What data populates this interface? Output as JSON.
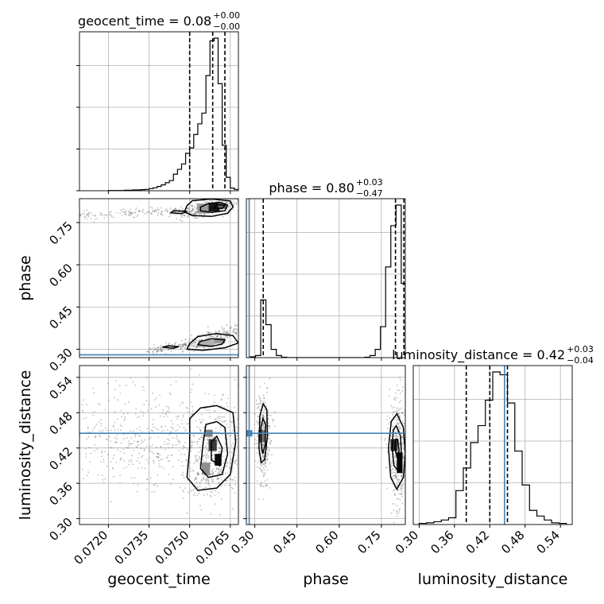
{
  "chart_data": {
    "type": "corner",
    "parameters": [
      "geocent_time",
      "phase",
      "luminosity_distance"
    ],
    "truth_color": "#4682b4",
    "truths": {
      "phase": 0.28,
      "luminosity_distance": 0.445
    },
    "titles": [
      {
        "param": "geocent_time",
        "name": "geocent_time",
        "value": "0.08",
        "plus": "+0.00",
        "minus": "−0.00"
      },
      {
        "param": "phase",
        "name": "phase",
        "value": "0.80",
        "plus": "+0.03",
        "minus": "−0.47"
      },
      {
        "param": "luminosity_distance",
        "name": "luminosity_distance",
        "value": "0.42",
        "plus": "+0.03",
        "minus": "−0.04"
      }
    ],
    "axes": {
      "geocent_time": {
        "label": "geocent_time",
        "range": [
          0.07093,
          0.0768
        ],
        "ticks": [
          0.072,
          0.0735,
          0.075,
          0.0765
        ],
        "tick_labels": [
          "0.0720",
          "0.0735",
          "0.0750",
          "0.0765"
        ]
      },
      "phase": {
        "label": "phase",
        "range": [
          0.27,
          0.835
        ],
        "ticks": [
          0.3,
          0.45,
          0.6,
          0.75
        ],
        "tick_labels": [
          "0.30",
          "0.45",
          "0.60",
          "0.75"
        ]
      },
      "luminosity_distance": {
        "label": "luminosity_distance",
        "range": [
          0.29,
          0.56
        ],
        "ticks": [
          0.3,
          0.36,
          0.42,
          0.48,
          0.54
        ],
        "tick_labels": [
          "0.30",
          "0.36",
          "0.42",
          "0.48",
          "0.54"
        ]
      }
    },
    "histograms": {
      "geocent_time": {
        "bin_edges": [
          0.072,
          0.0723,
          0.0726,
          0.0729,
          0.0732,
          0.07335,
          0.0735,
          0.07365,
          0.0738,
          0.07395,
          0.0741,
          0.07425,
          0.0744,
          0.07455,
          0.0747,
          0.07485,
          0.075,
          0.07515,
          0.0753,
          0.07545,
          0.0756,
          0.07575,
          0.0759,
          0.07605,
          0.0762,
          0.07635,
          0.0765,
          0.07665,
          0.0768
        ],
        "counts": [
          1,
          1,
          2,
          3,
          4,
          5,
          8,
          11,
          16,
          22,
          30,
          38,
          62,
          80,
          100,
          140,
          160,
          210,
          250,
          290,
          430,
          560,
          570,
          400,
          170,
          50,
          10,
          5
        ],
        "quantiles": [
          0.075,
          0.07585,
          0.0763
        ]
      },
      "phase": {
        "bin_edges": [
          0.284,
          0.3025,
          0.321,
          0.3395,
          0.358,
          0.3765,
          0.395,
          0.4135,
          0.432,
          0.4505,
          0.469,
          0.4875,
          0.506,
          0.5245,
          0.543,
          0.5615,
          0.58,
          0.5985,
          0.617,
          0.6355,
          0.654,
          0.6725,
          0.691,
          0.7095,
          0.728,
          0.7465,
          0.765,
          0.7835,
          0.802,
          0.8205,
          0.835
        ],
        "counts": [
          2,
          5,
          140,
          80,
          20,
          5,
          1,
          0,
          0,
          0,
          0,
          0,
          0,
          0,
          0,
          0,
          0,
          0,
          0,
          0,
          0,
          0,
          1,
          5,
          20,
          75,
          220,
          320,
          370,
          180
        ],
        "quantiles": [
          0.33,
          0.8,
          0.83
        ]
      },
      "luminosity_distance": {
        "bin_edges": [
          0.3,
          0.3125,
          0.325,
          0.3375,
          0.35,
          0.3625,
          0.375,
          0.3875,
          0.4,
          0.4125,
          0.425,
          0.4375,
          0.45,
          0.4625,
          0.475,
          0.4875,
          0.5,
          0.5125,
          0.525,
          0.5375,
          0.55
        ],
        "counts": [
          2,
          3,
          5,
          8,
          12,
          60,
          100,
          145,
          175,
          220,
          270,
          265,
          215,
          130,
          70,
          25,
          15,
          8,
          3,
          2
        ],
        "quantiles": [
          0.38,
          0.42,
          0.45
        ]
      }
    },
    "scatter_clusters": {
      "phase|geocent_time": [
        {
          "x0": 0.071,
          "x1": 0.0748,
          "y0": 0.775,
          "y1": 0.794,
          "n": 140,
          "jx": 8e-05,
          "jy": 0.008
        },
        {
          "x0": 0.0748,
          "x1": 0.0767,
          "y0": 0.78,
          "y1": 0.83,
          "n": 300,
          "jx": 0.0003,
          "jy": 0.013
        },
        {
          "x0": 0.0735,
          "x1": 0.075,
          "y0": 0.296,
          "y1": 0.318,
          "n": 110,
          "jx": 8e-05,
          "jy": 0.007
        },
        {
          "x0": 0.075,
          "x1": 0.0768,
          "y0": 0.31,
          "y1": 0.37,
          "n": 260,
          "jx": 0.0003,
          "jy": 0.014
        }
      ],
      "luminosity_distance|geocent_time": [
        {
          "x0": 0.0713,
          "x1": 0.0768,
          "y0": 0.44,
          "y1": 0.44,
          "n": 650,
          "jx": 0.0011,
          "jy": 0.045
        },
        {
          "x0": 0.0752,
          "x1": 0.0766,
          "y0": 0.38,
          "y1": 0.4,
          "n": 300,
          "jx": 0.0003,
          "jy": 0.03
        }
      ],
      "luminosity_distance|phase": [
        {
          "x0": 0.33,
          "x1": 0.33,
          "y0": 0.44,
          "y1": 0.44,
          "n": 320,
          "jx": 0.013,
          "jy": 0.04
        },
        {
          "x0": 0.8,
          "x1": 0.82,
          "y0": 0.42,
          "y1": 0.4,
          "n": 420,
          "jx": 0.017,
          "jy": 0.045
        }
      ]
    },
    "density_cells": {
      "phase|geocent_time": [
        {
          "x": 0.0755,
          "y": 0.8,
          "w": 0.00045,
          "h": 0.035,
          "shade": 0.35
        },
        {
          "x": 0.0759,
          "y": 0.805,
          "w": 0.0004,
          "h": 0.03,
          "shade": 0.9
        },
        {
          "x": 0.0762,
          "y": 0.81,
          "w": 0.0003,
          "h": 0.02,
          "shade": 0.6
        },
        {
          "x": 0.0756,
          "y": 0.32,
          "w": 0.0006,
          "h": 0.025,
          "shade": 0.25
        },
        {
          "x": 0.0761,
          "y": 0.33,
          "w": 0.0004,
          "h": 0.02,
          "shade": 0.35
        }
      ],
      "luminosity_distance|geocent_time": [
        {
          "x": 0.07585,
          "y": 0.425,
          "w": 0.0003,
          "h": 0.02,
          "shade": 0.75
        },
        {
          "x": 0.07605,
          "y": 0.4,
          "w": 0.00025,
          "h": 0.02,
          "shade": 0.95
        },
        {
          "x": 0.0757,
          "y": 0.445,
          "w": 0.0003,
          "h": 0.012,
          "shade": 0.45
        },
        {
          "x": 0.0756,
          "y": 0.385,
          "w": 0.0003,
          "h": 0.02,
          "shade": 0.4
        }
      ],
      "luminosity_distance|phase": [
        {
          "x": 0.325,
          "y": 0.44,
          "w": 0.025,
          "h": 0.02,
          "shade": 0.55
        },
        {
          "x": 0.795,
          "y": 0.425,
          "w": 0.025,
          "h": 0.02,
          "shade": 0.8
        },
        {
          "x": 0.815,
          "y": 0.395,
          "w": 0.02,
          "h": 0.035,
          "shade": 0.98
        }
      ]
    },
    "contours": {
      "phase|geocent_time": [
        [
          [
            0.0748,
            0.788
          ],
          [
            0.0751,
            0.775
          ],
          [
            0.0758,
            0.772
          ],
          [
            0.0764,
            0.783
          ],
          [
            0.0766,
            0.805
          ],
          [
            0.0765,
            0.827
          ],
          [
            0.0758,
            0.834
          ],
          [
            0.0751,
            0.828
          ],
          [
            0.0749,
            0.81
          ],
          [
            0.0748,
            0.788
          ]
        ],
        [
          [
            0.0754,
            0.792
          ],
          [
            0.0758,
            0.786
          ],
          [
            0.0763,
            0.792
          ],
          [
            0.0764,
            0.812
          ],
          [
            0.0761,
            0.822
          ],
          [
            0.0757,
            0.818
          ],
          [
            0.0754,
            0.805
          ],
          [
            0.0754,
            0.792
          ]
        ],
        [
          [
            0.0759,
            0.802
          ],
          [
            0.0762,
            0.8
          ],
          [
            0.0763,
            0.811
          ],
          [
            0.076,
            0.814
          ],
          [
            0.0759,
            0.802
          ]
        ],
        [
          [
            0.0743,
            0.785
          ],
          [
            0.0747,
            0.782
          ],
          [
            0.0749,
            0.79
          ],
          [
            0.0744,
            0.792
          ],
          [
            0.0743,
            0.785
          ]
        ],
        [
          [
            0.0749,
            0.3
          ],
          [
            0.0755,
            0.296
          ],
          [
            0.0763,
            0.305
          ],
          [
            0.0768,
            0.322
          ],
          [
            0.0766,
            0.348
          ],
          [
            0.076,
            0.356
          ],
          [
            0.0753,
            0.345
          ],
          [
            0.075,
            0.32
          ],
          [
            0.0749,
            0.3
          ]
        ],
        [
          [
            0.0753,
            0.316
          ],
          [
            0.0758,
            0.31
          ],
          [
            0.0762,
            0.318
          ],
          [
            0.0763,
            0.333
          ],
          [
            0.0758,
            0.337
          ],
          [
            0.0754,
            0.328
          ],
          [
            0.0753,
            0.316
          ]
        ],
        [
          [
            0.074,
            0.307
          ],
          [
            0.0744,
            0.303
          ],
          [
            0.0746,
            0.309
          ],
          [
            0.0742,
            0.312
          ],
          [
            0.074,
            0.307
          ]
        ]
      ],
      "luminosity_distance|geocent_time": [
        [
          [
            0.0749,
            0.37
          ],
          [
            0.0753,
            0.348
          ],
          [
            0.076,
            0.352
          ],
          [
            0.0765,
            0.375
          ],
          [
            0.0767,
            0.43
          ],
          [
            0.0766,
            0.48
          ],
          [
            0.076,
            0.492
          ],
          [
            0.0754,
            0.488
          ],
          [
            0.075,
            0.47
          ],
          [
            0.075,
            0.42
          ],
          [
            0.0749,
            0.37
          ]
        ],
        [
          [
            0.0754,
            0.385
          ],
          [
            0.0757,
            0.37
          ],
          [
            0.0762,
            0.375
          ],
          [
            0.0764,
            0.41
          ],
          [
            0.0763,
            0.455
          ],
          [
            0.076,
            0.465
          ],
          [
            0.0756,
            0.46
          ],
          [
            0.0755,
            0.43
          ],
          [
            0.0754,
            0.385
          ]
        ],
        [
          [
            0.0758,
            0.4
          ],
          [
            0.0761,
            0.39
          ],
          [
            0.0762,
            0.42
          ],
          [
            0.076,
            0.44
          ],
          [
            0.0758,
            0.43
          ],
          [
            0.0758,
            0.4
          ]
        ]
      ],
      "luminosity_distance|phase": [
        [
          [
            0.315,
            0.42
          ],
          [
            0.322,
            0.395
          ],
          [
            0.335,
            0.4
          ],
          [
            0.345,
            0.44
          ],
          [
            0.343,
            0.485
          ],
          [
            0.33,
            0.495
          ],
          [
            0.318,
            0.475
          ],
          [
            0.315,
            0.42
          ]
        ],
        [
          [
            0.322,
            0.43
          ],
          [
            0.328,
            0.41
          ],
          [
            0.337,
            0.425
          ],
          [
            0.338,
            0.46
          ],
          [
            0.329,
            0.47
          ],
          [
            0.322,
            0.455
          ],
          [
            0.322,
            0.43
          ]
        ],
        [
          [
            0.775,
            0.42
          ],
          [
            0.783,
            0.37
          ],
          [
            0.805,
            0.35
          ],
          [
            0.828,
            0.37
          ],
          [
            0.835,
            0.41
          ],
          [
            0.828,
            0.455
          ],
          [
            0.805,
            0.478
          ],
          [
            0.785,
            0.465
          ],
          [
            0.775,
            0.42
          ]
        ],
        [
          [
            0.788,
            0.42
          ],
          [
            0.795,
            0.39
          ],
          [
            0.812,
            0.38
          ],
          [
            0.822,
            0.4
          ],
          [
            0.818,
            0.44
          ],
          [
            0.803,
            0.458
          ],
          [
            0.792,
            0.45
          ],
          [
            0.788,
            0.42
          ]
        ],
        [
          [
            0.798,
            0.42
          ],
          [
            0.805,
            0.405
          ],
          [
            0.813,
            0.415
          ],
          [
            0.808,
            0.435
          ],
          [
            0.8,
            0.435
          ],
          [
            0.798,
            0.42
          ]
        ]
      ]
    }
  }
}
